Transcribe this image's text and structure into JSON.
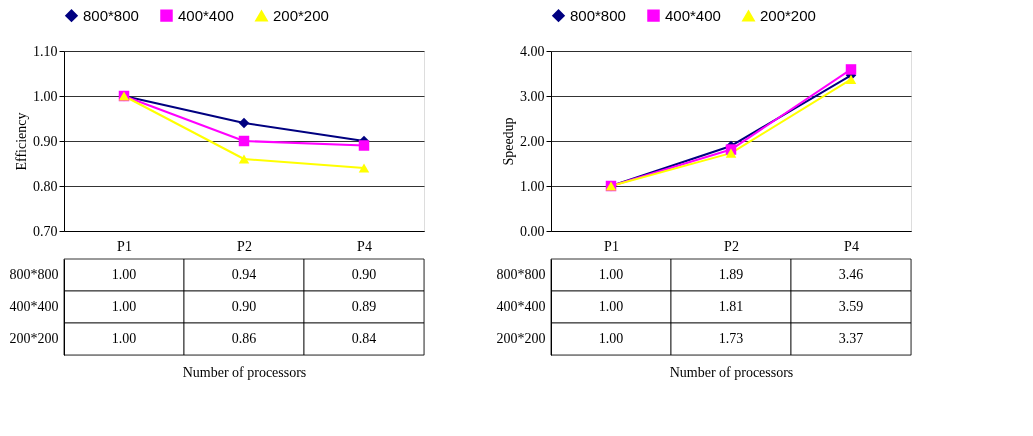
{
  "chart_data": [
    {
      "type": "line",
      "ylabel": "Efficiency",
      "xlabel": "Number of processors",
      "categories": [
        "P1",
        "P2",
        "P4"
      ],
      "series": [
        {
          "name": "800*800",
          "color": "#000080",
          "marker": "diamond",
          "values": [
            1.0,
            0.94,
            0.9
          ],
          "value_labels": [
            "1.00",
            "0.94",
            "0.90"
          ]
        },
        {
          "name": "400*400",
          "color": "#ff00ff",
          "marker": "square",
          "values": [
            1.0,
            0.9,
            0.89
          ],
          "value_labels": [
            "1.00",
            "0.90",
            "0.89"
          ]
        },
        {
          "name": "200*200",
          "color": "#ffff00",
          "marker": "triangle",
          "values": [
            1.0,
            0.86,
            0.84
          ],
          "value_labels": [
            "1.00",
            "0.86",
            "0.84"
          ]
        }
      ],
      "ylim": [
        0.7,
        1.1
      ],
      "yticks": [
        {
          "value": 0.7,
          "label": "0.70"
        },
        {
          "value": 0.8,
          "label": "0.80"
        },
        {
          "value": 0.9,
          "label": "0.90"
        },
        {
          "value": 1.0,
          "label": "1.00"
        },
        {
          "value": 1.1,
          "label": "1.10"
        }
      ],
      "grid": "y",
      "legend": "top"
    },
    {
      "type": "line",
      "ylabel": "Speedup",
      "xlabel": "Number of processors",
      "categories": [
        "P1",
        "P2",
        "P4"
      ],
      "series": [
        {
          "name": "800*800",
          "color": "#000080",
          "marker": "diamond",
          "values": [
            1.0,
            1.89,
            3.46
          ],
          "value_labels": [
            "1.00",
            "1.89",
            "3.46"
          ]
        },
        {
          "name": "400*400",
          "color": "#ff00ff",
          "marker": "square",
          "values": [
            1.0,
            1.81,
            3.59
          ],
          "value_labels": [
            "1.00",
            "1.81",
            "3.59"
          ]
        },
        {
          "name": "200*200",
          "color": "#ffff00",
          "marker": "triangle",
          "values": [
            1.0,
            1.73,
            3.37
          ],
          "value_labels": [
            "1.00",
            "1.73",
            "3.37"
          ]
        }
      ],
      "ylim": [
        0,
        4
      ],
      "yticks": [
        {
          "value": 0,
          "label": "0.00"
        },
        {
          "value": 1,
          "label": "1.00"
        },
        {
          "value": 2,
          "label": "2.00"
        },
        {
          "value": 3,
          "label": "3.00"
        },
        {
          "value": 4,
          "label": "4.00"
        }
      ],
      "grid": "y",
      "legend": "top"
    }
  ]
}
